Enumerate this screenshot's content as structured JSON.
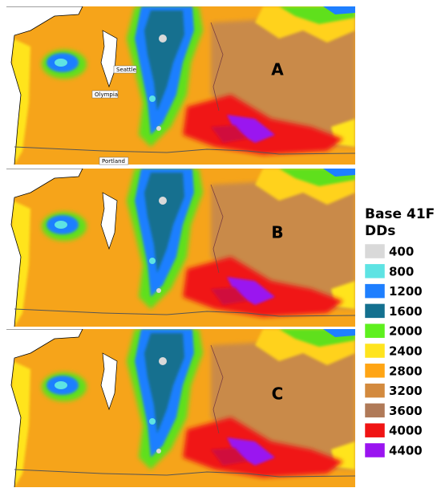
{
  "panels": [
    {
      "label": "A",
      "cities": [
        "Seattle",
        "Olympia",
        "Portland"
      ]
    },
    {
      "label": "B"
    },
    {
      "label": "C"
    }
  ],
  "legend": {
    "title_lines": [
      "Base 41F",
      "DDs"
    ],
    "items": [
      {
        "label": 400,
        "color": "#d9d9d9"
      },
      {
        "label": 800,
        "color": "#5ee3e3"
      },
      {
        "label": 1200,
        "color": "#1e7fff"
      },
      {
        "label": 1600,
        "color": "#13708f"
      },
      {
        "label": 2000,
        "color": "#5ef01e"
      },
      {
        "label": 2400,
        "color": "#ffe41e"
      },
      {
        "label": 2800,
        "color": "#ffa514"
      },
      {
        "label": 3200,
        "color": "#d38a3e"
      },
      {
        "label": 3600,
        "color": "#b07a58"
      },
      {
        "label": 4000,
        "color": "#f01414"
      },
      {
        "label": 4400,
        "color": "#9a14f0"
      }
    ]
  }
}
